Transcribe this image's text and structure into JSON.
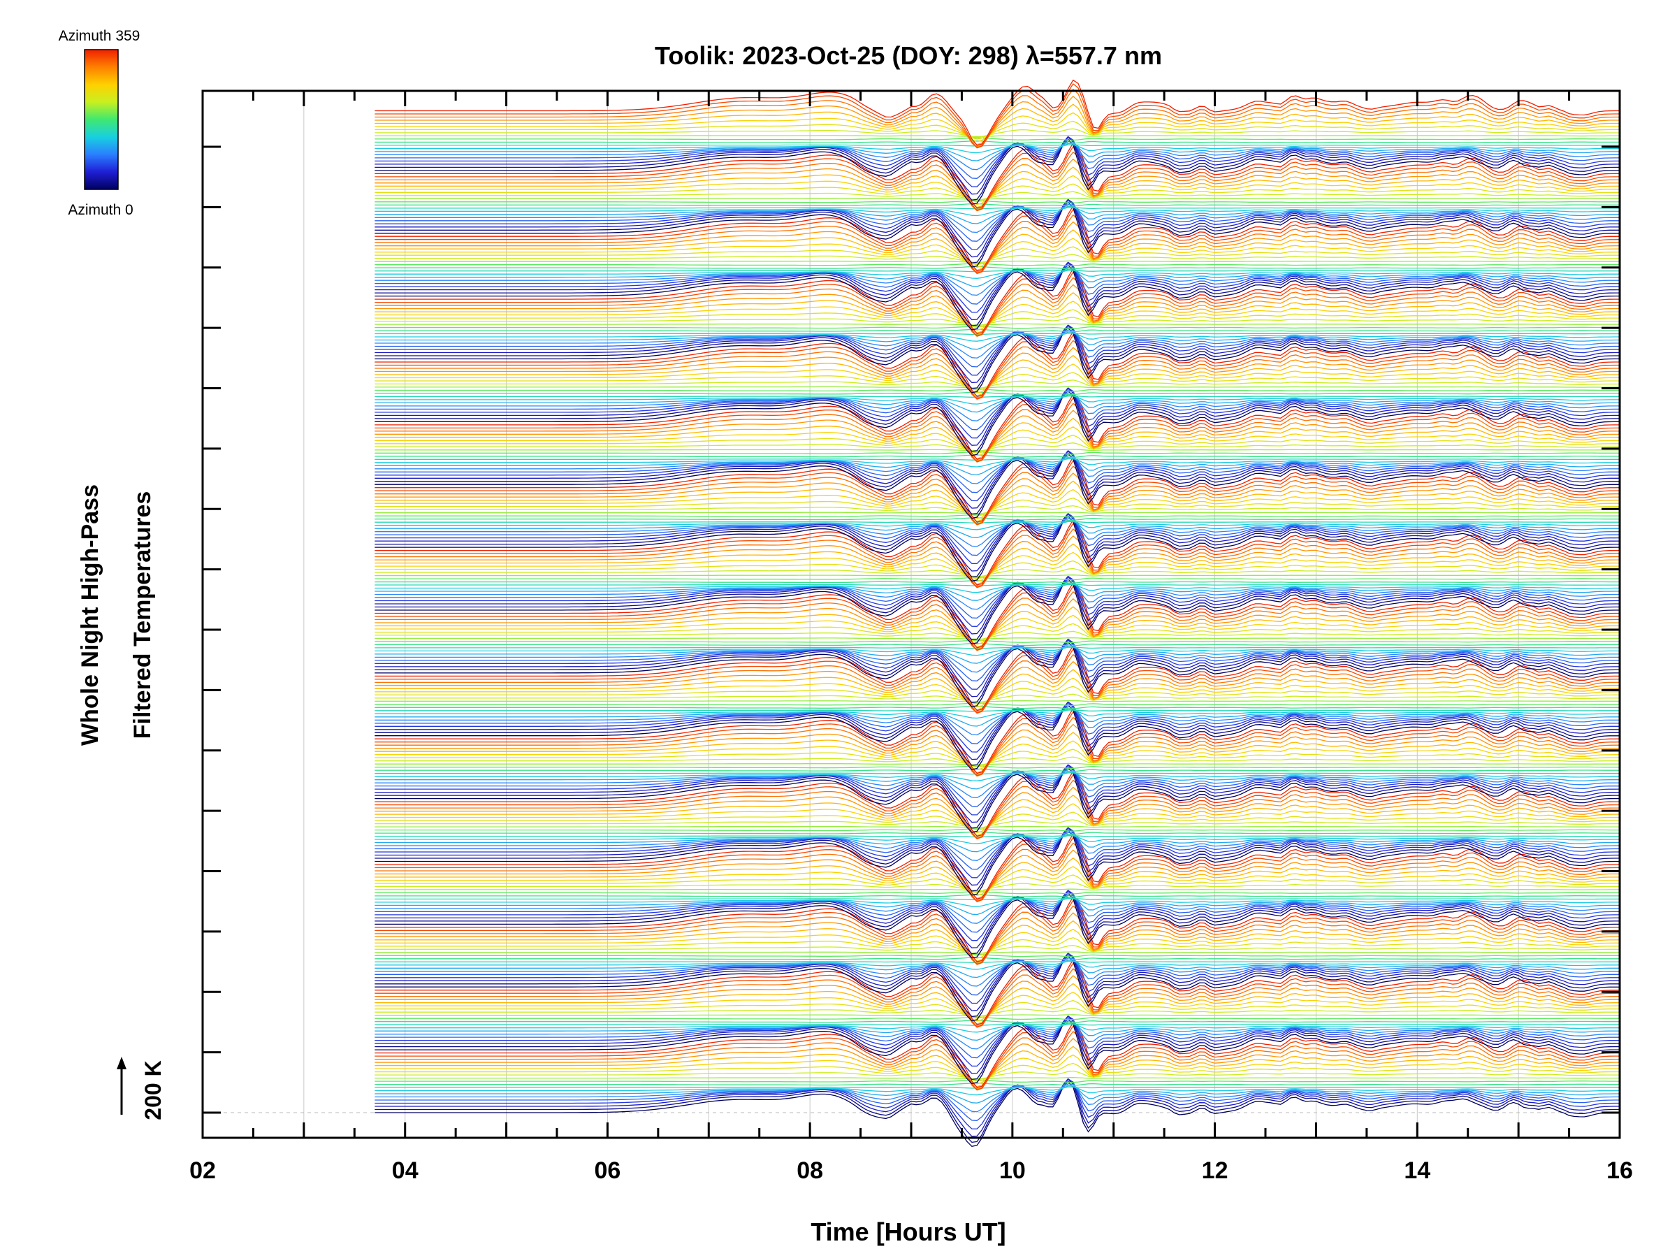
{
  "chart_data": {
    "type": "line",
    "title": "Toolik: 2023-Oct-25 (DOY: 298) λ=557.7 nm",
    "xlabel": "Time [Hours UT]",
    "ylabel_lines": [
      "Whole Night High-Pass",
      "Filtered Temperatures"
    ],
    "scale_label": "200 K",
    "xlim": [
      2,
      16
    ],
    "x_ticks": [
      "02",
      "04",
      "06",
      "08",
      "10",
      "12",
      "14",
      "16"
    ],
    "x_tick_values": [
      2,
      4,
      6,
      8,
      10,
      12,
      14,
      16
    ],
    "data_start_hour": 3.7,
    "colorbar": {
      "top_label": "Azimuth 359",
      "bottom_label": "Azimuth 0",
      "colormap": [
        "#000060",
        "#1f1fd6",
        "#2a7fff",
        "#18d0e0",
        "#3fe870",
        "#c8f020",
        "#ffd000",
        "#ff8000",
        "#f02000"
      ]
    },
    "grid": "vertical, hourly",
    "series_groups": 16,
    "azimuth_steps_per_group": 20,
    "accent_colors": {
      "grid": "#c8c8c8",
      "axis": "#000000"
    }
  }
}
